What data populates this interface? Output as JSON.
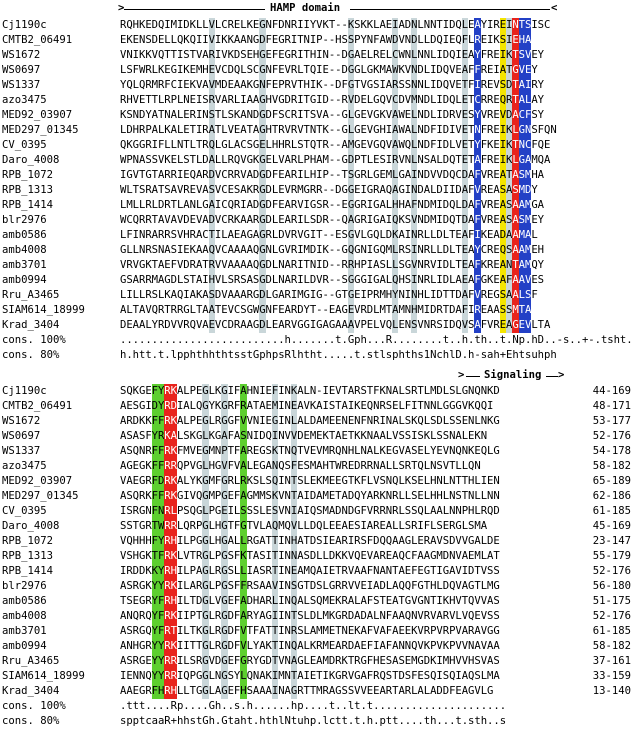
{
  "block1": {
    "header": "HAMP domain",
    "rows": [
      {
        "label": "Cj1190c",
        "seq": "RQHKEDQIMIDKLLVLCRELKEGNFDNRIIYVKT--KSKKLAEIADNLNNTIDQLEAYIREINTSISC",
        "range": ""
      },
      {
        "label": "CMTB2_06491",
        "seq": "EKENSDELLQKQIIVIKKAANGDFEGRITNIP--HSSPYNFAWDVNDLLDQIEQFLREIKSIEHA",
        "range": ""
      },
      {
        "label": "WS1672",
        "seq": "VNIKKVQTTISTVARIVKDSEHGEFEGRITHIN--DGAELRELCWNLNNLIDQIEAYFREIKTSVEY",
        "range": ""
      },
      {
        "label": "WS0697",
        "seq": "LSFWRLKEGIKEMHEVCDQLSCGNFEVRLTQIE--DGGLGKMAWKVNDLIDQVEAFFREIATGVEY",
        "range": ""
      },
      {
        "label": "WS1337",
        "seq": "YQLQRMRFCIEKVAVMDEAAKGNFEPRVTHIK--DFGTVGSIARSSNNLIDQVETFIREVSDTAIRY",
        "range": ""
      },
      {
        "label": "azo3475",
        "seq": "RHVETTLRPLNEISRVARLIAAGHVGDRITGID--RVDELGQVCDVMNDLIDQLETCRREQRTALAY",
        "range": ""
      },
      {
        "label": "MED92_03907",
        "seq": "KSNDYATNALERINSTLSKANDGDFSCRITSVA--GLGEVGKVAWELNDLIDRVESYVREVDACFSY",
        "range": ""
      },
      {
        "label": "MED297_01345",
        "seq": "LDHRPALKALETIRATLVEATAGHTRVRVTNTK--GLGEVGHIAWALNDFIDIVETNFREIKLGNSFQN",
        "range": ""
      },
      {
        "label": "CV_0395",
        "seq": "QKGGRIFLLNTLTRQLGLACSGELHHRLSTQTR--AMGEVGQVAWQLNDFIDLVETYFKEIKTNCFQE",
        "range": ""
      },
      {
        "label": "Daro_4008",
        "seq": "WPNASSVKELSTLDALLRQVGKGELVARLPHAM--GDPTLESIRVNLNSALDQTETAFREIKLGAMQA",
        "range": ""
      },
      {
        "label": "RPB_1072",
        "seq": "IGVTGTARRIEQARDVCRRVADGDFEARILHIP--TSGRLGEMLGAINDVVDQCDAFVREATASMHA",
        "range": ""
      },
      {
        "label": "RPB_1313",
        "seq": "WLTSRATSAVREVASVCESAKRGDLEVRMGRR--DGGEIGRAQAGINDALDIIDAFVREASASMDY",
        "range": ""
      },
      {
        "label": "RPB_1414",
        "seq": "LMLLRLDRTLANLGAICQRIADGDFEARVIGSR--EGGRIGALHHAFNDMIDQLDAFVREASAAMGA",
        "range": ""
      },
      {
        "label": "blr2976",
        "seq": "WCQRRTAVAVDEVADVCRKAARGDLEARILSDR--QAGRIGAIQKSVNDMIDQTDAFVREASASMEY",
        "range": ""
      },
      {
        "label": "amb0586",
        "seq": "LFINRARRSVHRACTILAEAGAGRLDVRVGIT--ESGVLGQLDKAINRLLDLTEAFIKEADAAMAL",
        "range": ""
      },
      {
        "label": "amb4008",
        "seq": "GLLNRSNASIEKAAQVCAAAAQGNLGVRIMDIK--GQGNIGQMLRSINRLLDLTEAYCREQSAAMEH",
        "range": ""
      },
      {
        "label": "amb3701",
        "seq": "VRVGKTAEFVDRATRVVAAAAQGDLNARITNID--RRHPIASLLSGVNRVIDLTEAFKREANTAMQY",
        "range": ""
      },
      {
        "label": "amb0994",
        "seq": "GSARRMAGDLSTAIHVLSRSASGDLNARILDVR--SGGGIGALQHSINRLIDLAEAFGKEAFAAVES",
        "range": ""
      },
      {
        "label": "Rru_A3465",
        "seq": "LILLRSLKAQIAKASDVAAARGDLGARIMGIG--GTGEIPRMHYNINHLIDTTDAFVREGSAALSF",
        "range": ""
      },
      {
        "label": "SIAM614_18999",
        "seq": "ALTAVQRTRRGLTAATEVCSGWGNFEARDYT--EAGEVRDLMTAMNHMIDRTDAFIREAASSMTA",
        "range": ""
      },
      {
        "label": "Krad_3404",
        "seq": "DEAALYRDVVRQVAEVCDRAAGDLEARVGGIGAGAAAVPELVQLENSVNRSIDQVSAFVREAGEVLTA",
        "range": ""
      },
      {
        "label": "cons. 100%",
        "seq": "..........................h.......t.Gph...R........t..h.th..t.Np.hD..-s..+-.tsht.",
        "range": "",
        "cons": true
      },
      {
        "label": "cons. 80%",
        "seq": "h.htt.t.lpphthhthtsstGphpsRlhtht.....t.stlsphths1NchlD.h-sah+Ehtsuhph",
        "range": "",
        "cons": true
      }
    ]
  },
  "block2": {
    "header": "Signaling",
    "rows": [
      {
        "label": "Cj1190c",
        "seq": "SQKGEFYRKALPEGLKGIFAHNIEFINKALN-IEVTARSTFKNALSRTLMDLSLGNQNKD",
        "range": "44-169"
      },
      {
        "label": "CMTB2_06491",
        "seq": "AESGIDYRDIALQGYKGRFRATAEMINEAVKAISTAIKEQNRSELFITNNLGGGVKQQI",
        "range": "48-171"
      },
      {
        "label": "WS1672",
        "seq": "ARDKKFFRKALPEGLRGGFVVNIEGINLALDAMEENENFNRINALSKQLSDLSSENLNKG",
        "range": "53-177"
      },
      {
        "label": "WS0697",
        "seq": "ASASFYRKALSKGLKGAFASNIDQINVVDEMEKTAETKKNAALVSSISKLSSNALEKN",
        "range": "52-176"
      },
      {
        "label": "WS1337",
        "seq": "ASQNRFFRKFMVEGMNPTFAREGSKTNQTVEVMRQNHLNALKEGVASELYEVNQNKEQLG",
        "range": "54-178"
      },
      {
        "label": "azo3475",
        "seq": "AGEGKFFRRQPVGLHGVFVALEGANQSFESMAHTWREDRRNALLSRTQLNSVTLLQN",
        "range": "58-182"
      },
      {
        "label": "MED92_03907",
        "seq": "VAEGRFDRKALYKGMFGRLRKSLSQINTSLEKMEEGTKFLVSNQLKSELHNLNTTHLIEN",
        "range": "65-189"
      },
      {
        "label": "MED297_01345",
        "seq": "ASQRKFFRKGIVQGMPGEFAGMMSKVNTAIDAMETADQYARKNRLLSELHHLNSTNLLNN",
        "range": "62-186"
      },
      {
        "label": "CV_0395",
        "seq": "ISRGNFNRLPSQGLPGEILSSSLESVNIAIQSMADNDGFVRRNRLSSQLAALNNPHLRQD",
        "range": "61-185"
      },
      {
        "label": "Daro_4008",
        "seq": "SSTGRTWRRLQRPGLHGTFGTVLAQMQVLLDQLEEAESIAREALLSRIFLSERGLSMA",
        "range": "45-169"
      },
      {
        "label": "RPB_1072",
        "seq": "VQHHHFYRHILPGGLHGALLRGATTINHATDSIEARIRSFDQQAAGLERAVSDVVGALDE",
        "range": "23-147"
      },
      {
        "label": "RPB_1313",
        "seq": "VSHGKTFRKLVTRGLPGSFKTASITINNASDLLDKKVQEVAREAQCFAAGMDNVAEMLAT",
        "range": "55-179"
      },
      {
        "label": "RPB_1414",
        "seq": "IRDDKKYRHILPAGLRGSLLIASRTINEAMQAIETRVAAFNANTAEFEGTIGAVIDTVSS",
        "range": "52-176"
      },
      {
        "label": "blr2976",
        "seq": "ASRGKYYRKILARGLPGSFFRSAAVINSGTDSLGRRVVEIADLAQQFGTHLDQVAGTLMG",
        "range": "56-180"
      },
      {
        "label": "amb0586",
        "seq": "TSEGRYFRHILTDGLVGEFADHARLINQALSQMEKRALAFSTEATGVGNTIKHVTQVVAS",
        "range": "51-175"
      },
      {
        "label": "amb4008",
        "seq": "ANQRQYFRKIIPTGLRGDFARYAGIINTSLDLMKGRDADALNFAAQNVRVARVLVQEVSS",
        "range": "52-176"
      },
      {
        "label": "amb3701",
        "seq": "ASRGQYFRTILTKGLRGDFVTFATTINRSLAMMETNEKAFVAFAEEKVRPVRPVARAVGG",
        "range": "61-185"
      },
      {
        "label": "amb0994",
        "seq": "ANHGRYYRKIITTGLRGDFVLYAKTINQALKRMEARDAEFIAFANNQVKPVKPVVNAVAA",
        "range": "58-182"
      },
      {
        "label": "Rru_A3465",
        "seq": "ASRGEYYRRILSRGVDGEFGRYGDTVNAGLEAMDRKTRGFHESASEMGDKIMHVVHSVAS",
        "range": "37-161"
      },
      {
        "label": "SIAM614_18999",
        "seq": "IENNQYYRRIQPGGLNGSYLQNAKIMNTAIETIKGRVGAFRQSTDSFESQISQIAQSLMA",
        "range": "33-159"
      },
      {
        "label": "Krad_3404",
        "seq": "AAEGRFHRHLLTGGLAGEFHSAAAINAGRTTMRAGSSVVEEARTARLALADDFEAGVLG",
        "range": "13-140"
      },
      {
        "label": "cons. 100%",
        "seq": ".ttt....Rp....Gh..s.h......hp....t..lt.t.....................",
        "range": "",
        "cons": true
      },
      {
        "label": "cons. 80%",
        "seq": "spptcaaR+hhstGh.Gtaht.hthlNtuhp.lctt.t.h.ptt....th...t.sth..s",
        "range": "",
        "cons": true
      }
    ]
  },
  "colors": {
    "blue": "#2340c6",
    "red": "#e8231c",
    "yellow": "#f4e500",
    "green": "#5dcf2f",
    "gray": "#c9d6d9"
  }
}
